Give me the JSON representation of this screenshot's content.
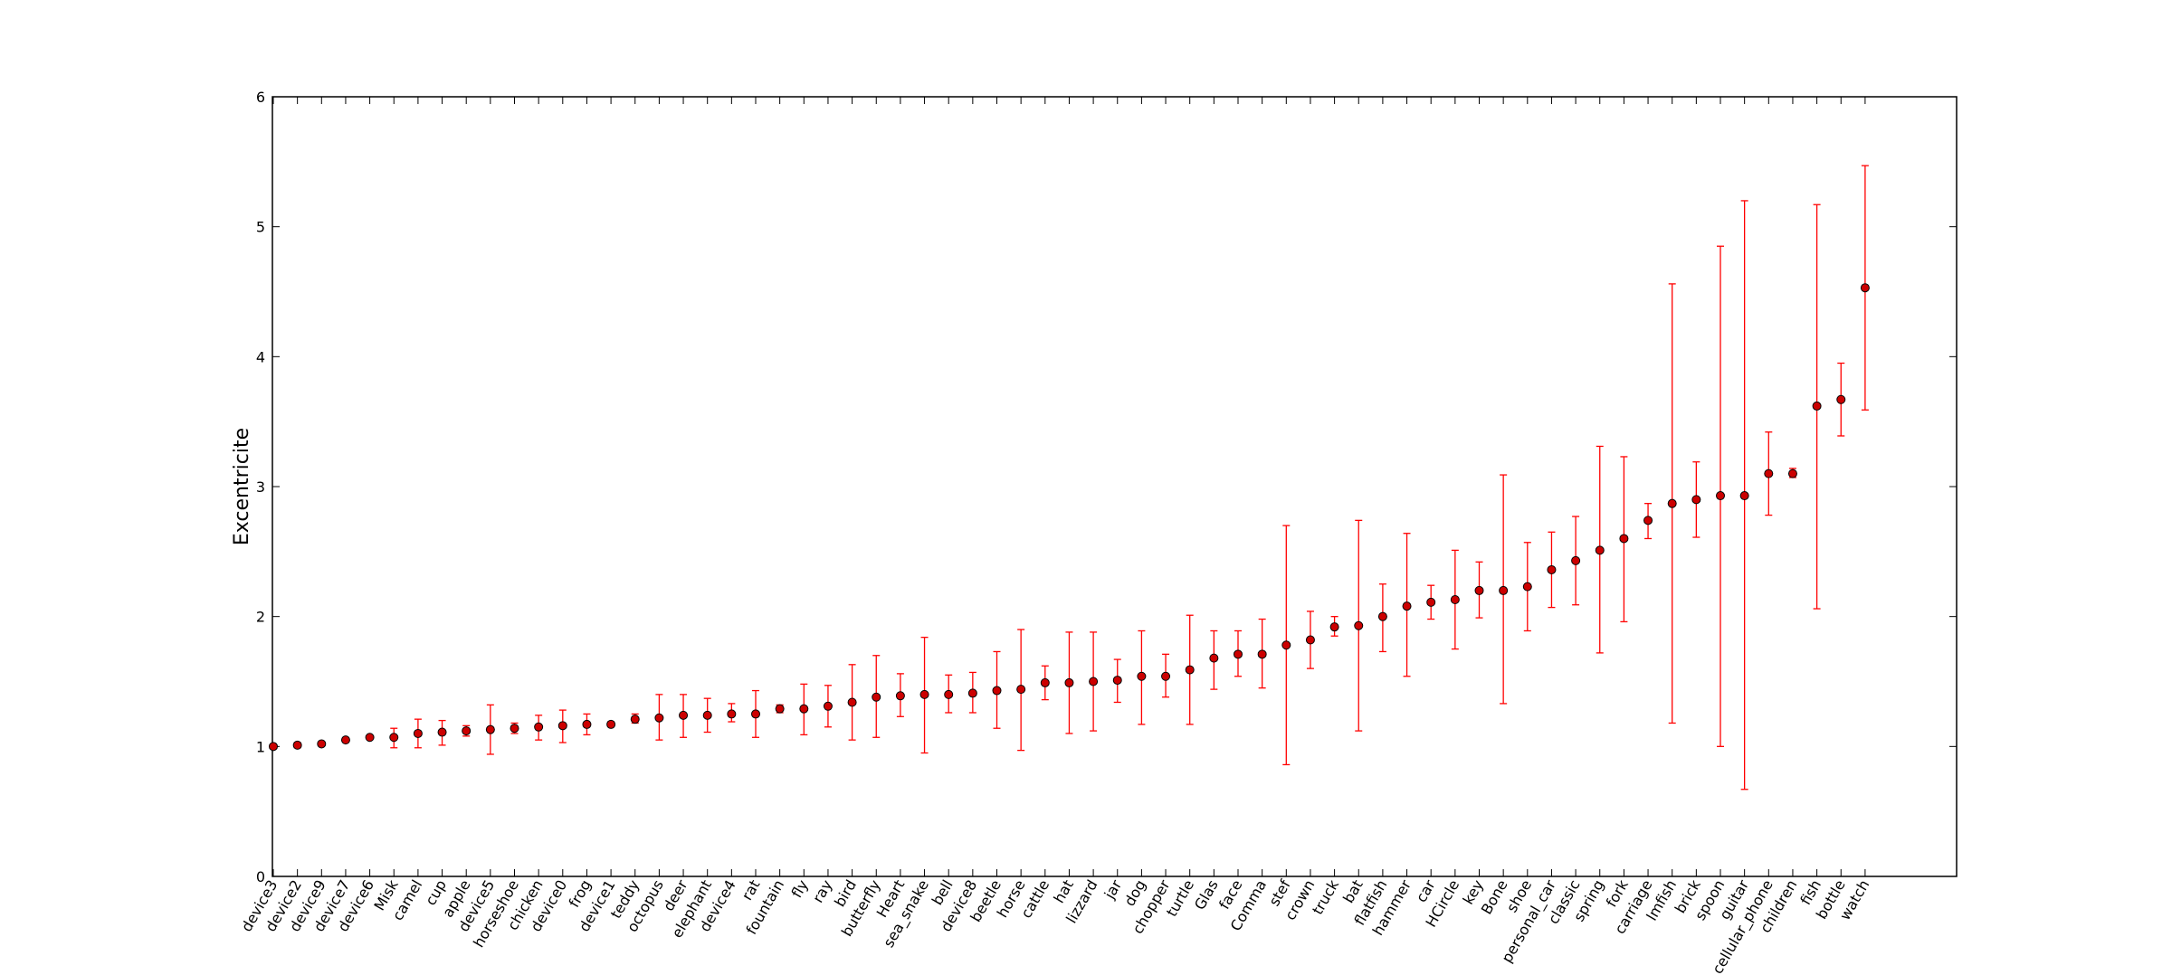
{
  "chart_data": {
    "type": "scatter",
    "title": "",
    "xlabel": "",
    "ylabel": "Excentricite",
    "ylim": [
      0,
      6
    ],
    "yticks": [
      "0",
      "1",
      "2",
      "3",
      "4",
      "5",
      "6"
    ],
    "grid": false,
    "legend": "none",
    "marker_color": "#cc0000",
    "errorbar_color": "#ff0000",
    "categories": [
      "device3",
      "device2",
      "device9",
      "device7",
      "device6",
      "Misk",
      "camel",
      "cup",
      "apple",
      "device5",
      "horseshoe",
      "chicken",
      "device0",
      "frog",
      "device1",
      "teddy",
      "octopus",
      "deer",
      "elephant",
      "device4",
      "rat",
      "fountain",
      "fly",
      "ray",
      "bird",
      "butterfly",
      "Heart",
      "sea_snake",
      "bell",
      "device8",
      "beetle",
      "horse",
      "cattle",
      "hat",
      "lizzard",
      "jar",
      "dog",
      "chopper",
      "turtle",
      "Glas",
      "face",
      "Comma",
      "stef",
      "crown",
      "truck",
      "bat",
      "flatfish",
      "hammer",
      "car",
      "HCircle",
      "key",
      "Bone",
      "shoe",
      "personal_car",
      "classic",
      "spring",
      "fork",
      "carriage",
      "lmfish",
      "brick",
      "spoon",
      "guitar",
      "cellular_phone",
      "children",
      "fish",
      "bottle",
      "watch"
    ],
    "values": [
      1.0,
      1.01,
      1.02,
      1.05,
      1.07,
      1.07,
      1.1,
      1.11,
      1.12,
      1.13,
      1.14,
      1.15,
      1.16,
      1.17,
      1.17,
      1.21,
      1.22,
      1.24,
      1.24,
      1.25,
      1.25,
      1.29,
      1.29,
      1.31,
      1.34,
      1.38,
      1.39,
      1.4,
      1.4,
      1.41,
      1.43,
      1.44,
      1.49,
      1.49,
      1.5,
      1.51,
      1.54,
      1.54,
      1.59,
      1.68,
      1.71,
      1.71,
      1.78,
      1.82,
      1.92,
      1.93,
      2.0,
      2.08,
      2.11,
      2.13,
      2.2,
      2.2,
      2.23,
      2.36,
      2.43,
      2.51,
      2.6,
      2.74,
      2.87,
      2.9,
      2.93,
      2.93,
      3.1,
      3.1,
      3.62,
      3.67,
      4.53
    ],
    "err_low": [
      1.0,
      0.99,
      1.01,
      1.04,
      1.06,
      0.99,
      0.99,
      1.01,
      1.08,
      0.94,
      1.1,
      1.05,
      1.03,
      1.09,
      1.16,
      1.18,
      1.05,
      1.07,
      1.11,
      1.19,
      1.07,
      1.26,
      1.09,
      1.15,
      1.05,
      1.07,
      1.23,
      0.95,
      1.26,
      1.26,
      1.14,
      0.97,
      1.36,
      1.1,
      1.12,
      1.34,
      1.17,
      1.38,
      1.17,
      1.44,
      1.54,
      1.45,
      0.86,
      1.6,
      1.85,
      1.12,
      1.73,
      1.54,
      1.98,
      1.75,
      1.99,
      1.33,
      1.89,
      2.07,
      2.09,
      1.72,
      1.96,
      2.6,
      1.18,
      2.61,
      1.0,
      0.67,
      2.78,
      3.07,
      2.06,
      3.39,
      3.59
    ],
    "err_high": [
      1.01,
      1.03,
      1.03,
      1.06,
      1.08,
      1.14,
      1.21,
      1.2,
      1.16,
      1.32,
      1.18,
      1.24,
      1.28,
      1.25,
      1.19,
      1.25,
      1.4,
      1.4,
      1.37,
      1.33,
      1.43,
      1.32,
      1.48,
      1.47,
      1.63,
      1.7,
      1.56,
      1.84,
      1.55,
      1.57,
      1.73,
      1.9,
      1.62,
      1.88,
      1.88,
      1.67,
      1.89,
      1.71,
      2.01,
      1.89,
      1.89,
      1.98,
      2.7,
      2.04,
      2.0,
      2.74,
      2.25,
      2.64,
      2.24,
      2.51,
      2.42,
      3.09,
      2.57,
      2.65,
      2.77,
      3.31,
      3.23,
      2.87,
      4.56,
      3.19,
      4.85,
      5.2,
      3.42,
      3.14,
      5.17,
      3.95,
      5.47
    ]
  }
}
